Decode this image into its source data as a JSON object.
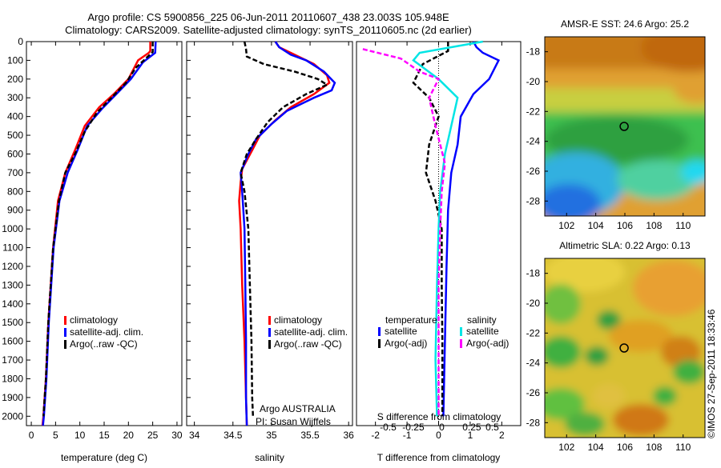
{
  "header": {
    "line1": "Argo profile: CS 5900856_225 06-Jun-2011 20110607_438 23.003S 105.948E",
    "line2": "Climatology: CARS2009. Satellite-adjusted climatology: synTS_20110605.nc (2d earlier)"
  },
  "credit": "©IMOS 27-Sep-2011 18:33:46",
  "colors": {
    "climatology": "#ff0000",
    "satellite": "#0000ff",
    "argo": "#000000",
    "sal_satellite": "#00e5e5",
    "sal_argo": "#ff00ff"
  },
  "chart_data": [
    {
      "id": "temperature",
      "type": "line",
      "xlabel": "temperature (deg C)",
      "xlim": [
        -1,
        31
      ],
      "xticks": [
        "0",
        "5",
        "10",
        "15",
        "20",
        "25",
        "30"
      ],
      "ylim": [
        0,
        2050
      ],
      "yticks": [
        "0",
        "100",
        "200",
        "300",
        "400",
        "500",
        "600",
        "700",
        "800",
        "900",
        "1000",
        "1100",
        "1200",
        "1300",
        "1400",
        "1500",
        "1600",
        "1700",
        "1800",
        "1900",
        "2000"
      ],
      "legend": [
        "climatology",
        "satellite-adj. clim.",
        "Argo(..raw -QC)"
      ],
      "series": [
        {
          "name": "climatology",
          "color": "#ff0000",
          "points": [
            [
              24.5,
              0
            ],
            [
              24.5,
              50
            ],
            [
              24.2,
              60
            ],
            [
              22,
              100
            ],
            [
              20,
              200
            ],
            [
              17,
              280
            ],
            [
              14,
              350
            ],
            [
              11,
              450
            ],
            [
              9,
              580
            ],
            [
              7,
              700
            ],
            [
              5.5,
              850
            ],
            [
              4.5,
              1100
            ],
            [
              3.5,
              1500
            ],
            [
              3,
              1800
            ],
            [
              2.5,
              2000
            ],
            [
              2.3,
              2050
            ]
          ]
        },
        {
          "name": "satellite-adj. clim.",
          "color": "#0000ff",
          "points": [
            [
              25.6,
              0
            ],
            [
              25.5,
              60
            ],
            [
              23,
              110
            ],
            [
              20.5,
              200
            ],
            [
              17.5,
              280
            ],
            [
              14.5,
              360
            ],
            [
              11.5,
              450
            ],
            [
              9.5,
              580
            ],
            [
              7.5,
              700
            ],
            [
              5.8,
              850
            ],
            [
              4.6,
              1100
            ],
            [
              3.6,
              1500
            ],
            [
              3.1,
              1800
            ],
            [
              2.6,
              2000
            ],
            [
              2.4,
              2050
            ]
          ]
        },
        {
          "name": "Argo(..raw -QC)",
          "color": "#000000",
          "dashed": true,
          "points": [
            [
              25,
              0
            ],
            [
              25,
              55
            ],
            [
              24,
              80
            ],
            [
              21.5,
              140
            ],
            [
              19.5,
              220
            ],
            [
              16.5,
              300
            ],
            [
              13.5,
              380
            ],
            [
              11,
              480
            ],
            [
              9,
              600
            ],
            [
              7,
              700
            ],
            [
              5.7,
              850
            ],
            [
              4.5,
              1100
            ],
            [
              3.5,
              1500
            ],
            [
              3,
              1800
            ],
            [
              2.5,
              2000
            ]
          ]
        }
      ]
    },
    {
      "id": "salinity",
      "type": "line",
      "xlabel": "salinity",
      "xlim": [
        33.9,
        36.05
      ],
      "xticks": [
        "34",
        "34.5",
        "35",
        "35.5",
        "36"
      ],
      "ylim": [
        0,
        2050
      ],
      "legend": [
        "climatology",
        "satellite-adj. clim.",
        "Argo(..raw -QC)"
      ],
      "annotation": [
        "Argo AUSTRALIA",
        "PI: Susan Wijffels"
      ],
      "series": [
        {
          "name": "climatology",
          "color": "#ff0000",
          "points": [
            [
              35.05,
              0
            ],
            [
              35.1,
              30
            ],
            [
              35.3,
              70
            ],
            [
              35.55,
              120
            ],
            [
              35.72,
              180
            ],
            [
              35.75,
              220
            ],
            [
              35.55,
              280
            ],
            [
              35.25,
              350
            ],
            [
              35.05,
              420
            ],
            [
              34.85,
              500
            ],
            [
              34.75,
              580
            ],
            [
              34.62,
              680
            ],
            [
              34.6,
              750
            ],
            [
              34.58,
              850
            ],
            [
              34.6,
              1000
            ],
            [
              34.62,
              1300
            ],
            [
              34.65,
              1600
            ],
            [
              34.67,
              1900
            ],
            [
              34.68,
              2050
            ]
          ]
        },
        {
          "name": "satellite-adj. clim.",
          "color": "#0000ff",
          "points": [
            [
              35.05,
              0
            ],
            [
              35.1,
              30
            ],
            [
              35.25,
              70
            ],
            [
              35.45,
              100
            ],
            [
              35.68,
              160
            ],
            [
              35.82,
              220
            ],
            [
              35.78,
              260
            ],
            [
              35.55,
              300
            ],
            [
              35.2,
              370
            ],
            [
              35.0,
              440
            ],
            [
              34.8,
              520
            ],
            [
              34.7,
              600
            ],
            [
              34.6,
              700
            ],
            [
              34.62,
              800
            ],
            [
              34.65,
              1000
            ],
            [
              34.66,
              1300
            ],
            [
              34.67,
              1600
            ],
            [
              34.67,
              1900
            ],
            [
              34.68,
              2050
            ]
          ]
        },
        {
          "name": "Argo(..raw -QC)",
          "color": "#000000",
          "dashed": true,
          "points": [
            [
              34.65,
              0
            ],
            [
              34.67,
              40
            ],
            [
              34.68,
              80
            ],
            [
              34.9,
              120
            ],
            [
              35.3,
              160
            ],
            [
              35.6,
              200
            ],
            [
              35.72,
              230
            ],
            [
              35.45,
              280
            ],
            [
              35.15,
              350
            ],
            [
              34.95,
              430
            ],
            [
              34.8,
              520
            ],
            [
              34.68,
              600
            ],
            [
              34.6,
              700
            ],
            [
              34.65,
              800
            ],
            [
              34.7,
              1000
            ],
            [
              34.72,
              1300
            ],
            [
              34.74,
              1600
            ],
            [
              34.75,
              1900
            ],
            [
              34.76,
              2000
            ]
          ]
        }
      ]
    },
    {
      "id": "difference",
      "type": "line",
      "xlabel": "T difference from climatology",
      "xlabel_top": "S difference from climatology",
      "xlim": [
        -2.6,
        2.6
      ],
      "xticks": [
        "-2",
        "-1",
        "0",
        "1",
        "2"
      ],
      "xticks_top": [
        "-0.5",
        "-0.25",
        "0",
        "0.25",
        "0.5"
      ],
      "ylim": [
        0,
        2050
      ],
      "legend_left_title": "temperature",
      "legend_right_title": "salinity",
      "legend": [
        "satellite",
        "Argo(-adj)",
        "satellite",
        "Argo(-adj)"
      ],
      "series": [
        {
          "name": "satellite",
          "color": "#0000ff",
          "points": [
            [
              1.1,
              0
            ],
            [
              1.2,
              30
            ],
            [
              1.4,
              60
            ],
            [
              1.9,
              100
            ],
            [
              1.6,
              200
            ],
            [
              1.1,
              280
            ],
            [
              0.7,
              400
            ],
            [
              0.6,
              550
            ],
            [
              0.4,
              700
            ],
            [
              0.3,
              900
            ],
            [
              0.25,
              1200
            ],
            [
              0.2,
              1600
            ],
            [
              0.15,
              2000
            ]
          ]
        },
        {
          "name": "Argo(-adj)",
          "color": "#000000",
          "dashed": true,
          "points": [
            [
              0.3,
              0
            ],
            [
              0.3,
              50
            ],
            [
              -0.5,
              120
            ],
            [
              -0.8,
              220
            ],
            [
              -0.3,
              300
            ],
            [
              0,
              400
            ],
            [
              -0.3,
              550
            ],
            [
              -0.4,
              700
            ],
            [
              -0.1,
              850
            ],
            [
              0.1,
              1000
            ],
            [
              0.1,
              1300
            ],
            [
              0.12,
              1600
            ],
            [
              0.12,
              2000
            ]
          ]
        },
        {
          "name": "satellite",
          "color": "#00e5e5",
          "points": [
            [
              1.4,
              0
            ],
            [
              -0.6,
              60
            ],
            [
              -0.8,
              100
            ],
            [
              0,
              200
            ],
            [
              0.6,
              300
            ],
            [
              0.4,
              450
            ],
            [
              0.2,
              600
            ],
            [
              0.05,
              800
            ],
            [
              0,
              1000
            ],
            [
              -0.05,
              1300
            ],
            [
              -0.1,
              1700
            ],
            [
              -0.05,
              2000
            ]
          ]
        },
        {
          "name": "Argo(-adj)",
          "color": "#ff00ff",
          "dashed": true,
          "points": [
            [
              -2.4,
              40
            ],
            [
              -1.2,
              90
            ],
            [
              -0.6,
              160
            ],
            [
              0,
              200
            ],
            [
              -0.3,
              300
            ],
            [
              -0.1,
              450
            ],
            [
              0.2,
              650
            ],
            [
              0.1,
              800
            ],
            [
              0.05,
              1000
            ],
            [
              0,
              1300
            ],
            [
              0,
              1700
            ],
            [
              0,
              2000
            ]
          ]
        }
      ]
    },
    {
      "id": "sst-map",
      "type": "heatmap",
      "title": "AMSR-E SST: 24.6  Argo: 25.2",
      "xticks": [
        "102",
        "104",
        "106",
        "108",
        "110"
      ],
      "yticks": [
        "-18",
        "-20",
        "-22",
        "-24",
        "-26",
        "-28"
      ],
      "xlim": [
        100.5,
        111.5
      ],
      "ylim": [
        -29,
        -17
      ],
      "marker": {
        "lon": 105.95,
        "lat": -23.0
      }
    },
    {
      "id": "sla-map",
      "type": "heatmap",
      "title": "Altimetric SLA: 0.22  Argo: 0.13",
      "xticks": [
        "102",
        "104",
        "106",
        "108",
        "110"
      ],
      "yticks": [
        "-18",
        "-20",
        "-22",
        "-24",
        "-26",
        "-28"
      ],
      "xlim": [
        100.5,
        111.5
      ],
      "ylim": [
        -29,
        -17
      ],
      "marker": {
        "lon": 105.95,
        "lat": -23.0
      }
    }
  ]
}
